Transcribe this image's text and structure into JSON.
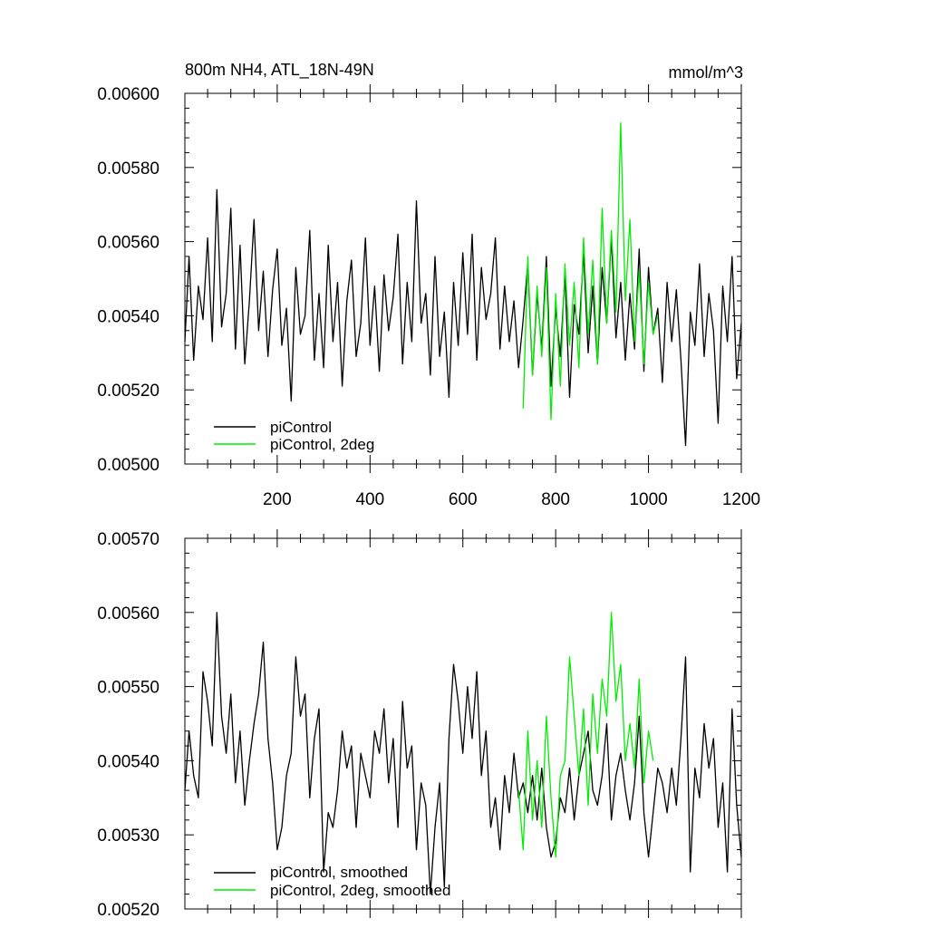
{
  "chart_data": [
    {
      "type": "line",
      "title": "800m NH4, ATL_18N-49N",
      "units": "mmol/m^3",
      "xlim": [
        1,
        1200
      ],
      "ylim": [
        0.005,
        0.006
      ],
      "x_ticks": [
        200,
        400,
        600,
        800,
        1000,
        1200
      ],
      "x_tick_labels": [
        "200",
        "400",
        "600",
        "800",
        "1000",
        "1200"
      ],
      "y_ticks": [
        0.005,
        0.0052,
        0.0054,
        0.0056,
        0.0058,
        0.006
      ],
      "y_tick_labels": [
        "0.00500",
        "0.00520",
        "0.00540",
        "0.00560",
        "0.00580",
        "0.00600"
      ],
      "legend_position": "bottom-left",
      "series": [
        {
          "name": "piControl",
          "color": "#000000",
          "x": [
            1,
            10,
            20,
            30,
            40,
            50,
            60,
            70,
            80,
            90,
            100,
            110,
            120,
            130,
            140,
            150,
            160,
            170,
            180,
            190,
            200,
            210,
            220,
            230,
            240,
            250,
            260,
            270,
            280,
            290,
            300,
            310,
            320,
            330,
            340,
            350,
            360,
            370,
            380,
            390,
            400,
            410,
            420,
            430,
            440,
            450,
            460,
            470,
            480,
            490,
            500,
            510,
            520,
            530,
            540,
            550,
            560,
            570,
            580,
            590,
            600,
            610,
            620,
            630,
            640,
            650,
            660,
            670,
            680,
            690,
            700,
            710,
            720,
            730,
            740,
            750,
            760,
            770,
            780,
            790,
            800,
            810,
            820,
            830,
            840,
            850,
            860,
            870,
            880,
            890,
            900,
            910,
            920,
            930,
            940,
            950,
            960,
            970,
            980,
            990,
            1000,
            1010,
            1020,
            1030,
            1040,
            1050,
            1060,
            1070,
            1080,
            1090,
            1100,
            1110,
            1120,
            1130,
            1140,
            1150,
            1160,
            1170,
            1180,
            1190,
            1200
          ],
          "y": [
            0.00533,
            0.00556,
            0.00528,
            0.00548,
            0.00539,
            0.00561,
            0.00533,
            0.00574,
            0.00537,
            0.00546,
            0.00569,
            0.00531,
            0.00559,
            0.00527,
            0.00544,
            0.00566,
            0.00536,
            0.00552,
            0.00529,
            0.00547,
            0.00558,
            0.00532,
            0.00542,
            0.00517,
            0.00553,
            0.00535,
            0.0054,
            0.00563,
            0.00528,
            0.00546,
            0.00526,
            0.00559,
            0.00533,
            0.00549,
            0.00521,
            0.00544,
            0.00555,
            0.00529,
            0.00538,
            0.00561,
            0.00532,
            0.00548,
            0.00525,
            0.00551,
            0.00536,
            0.00545,
            0.00562,
            0.00527,
            0.00549,
            0.00533,
            0.00571,
            0.00538,
            0.00546,
            0.00524,
            0.00556,
            0.00529,
            0.00541,
            0.00518,
            0.00549,
            0.00532,
            0.00557,
            0.00535,
            0.00562,
            0.00528,
            0.00553,
            0.00539,
            0.00546,
            0.00561,
            0.00531,
            0.00548,
            0.00533,
            0.00544,
            0.00526,
            0.00539,
            0.00554,
            0.00524,
            0.00546,
            0.00531,
            0.00556,
            0.00521,
            0.00542,
            0.00529,
            0.00551,
            0.00518,
            0.00543,
            0.00535,
            0.00557,
            0.0053,
            0.00548,
            0.00527,
            0.00553,
            0.00538,
            0.00561,
            0.00534,
            0.00549,
            0.00528,
            0.00546,
            0.00531,
            0.00558,
            0.00525,
            0.00553,
            0.00535,
            0.00542,
            0.00522,
            0.00549,
            0.00533,
            0.00547,
            0.00528,
            0.00505,
            0.00541,
            0.00532,
            0.00554,
            0.00529,
            0.00546,
            0.00536,
            0.00511,
            0.00548,
            0.00533,
            0.00556,
            0.00523,
            0.00538
          ]
        },
        {
          "name": "piControl, 2deg",
          "color": "#00ee00",
          "x": [
            730,
            740,
            750,
            760,
            770,
            780,
            790,
            800,
            810,
            820,
            830,
            840,
            850,
            860,
            870,
            880,
            890,
            900,
            910,
            920,
            930,
            940,
            950,
            960,
            970,
            980,
            990,
            1000,
            1010,
            1020
          ],
          "y": [
            0.00515,
            0.00556,
            0.00524,
            0.00548,
            0.00529,
            0.00553,
            0.00512,
            0.00546,
            0.00521,
            0.00554,
            0.00532,
            0.00549,
            0.00526,
            0.00561,
            0.00535,
            0.00555,
            0.00527,
            0.00569,
            0.00538,
            0.00563,
            0.00541,
            0.00592,
            0.00544,
            0.00566,
            0.00533,
            0.00552,
            0.00527,
            0.00549,
            0.00535,
            0.0054
          ]
        }
      ]
    },
    {
      "type": "line",
      "xlim": [
        1,
        1200
      ],
      "ylim": [
        0.0052,
        0.0057
      ],
      "y_ticks": [
        0.0052,
        0.0053,
        0.0054,
        0.0055,
        0.0056,
        0.0057
      ],
      "y_tick_labels": [
        "0.00520",
        "0.00530",
        "0.00540",
        "0.00550",
        "0.00560",
        "0.00570"
      ],
      "legend_position": "bottom-left",
      "series": [
        {
          "name": "piControl, smoothed",
          "color": "#000000",
          "x": [
            1,
            10,
            20,
            30,
            40,
            50,
            60,
            70,
            80,
            90,
            100,
            110,
            120,
            130,
            140,
            150,
            160,
            170,
            180,
            190,
            200,
            210,
            220,
            230,
            240,
            250,
            260,
            270,
            280,
            290,
            300,
            310,
            320,
            330,
            340,
            350,
            360,
            370,
            380,
            390,
            400,
            410,
            420,
            430,
            440,
            450,
            460,
            470,
            480,
            490,
            500,
            510,
            520,
            530,
            540,
            550,
            560,
            570,
            580,
            590,
            600,
            610,
            620,
            630,
            640,
            650,
            660,
            670,
            680,
            690,
            700,
            710,
            720,
            730,
            740,
            750,
            760,
            770,
            780,
            790,
            800,
            810,
            820,
            830,
            840,
            850,
            860,
            870,
            880,
            890,
            900,
            910,
            920,
            930,
            940,
            950,
            960,
            970,
            980,
            990,
            1000,
            1010,
            1020,
            1030,
            1040,
            1050,
            1060,
            1070,
            1080,
            1090,
            1100,
            1110,
            1120,
            1130,
            1140,
            1150,
            1160,
            1170,
            1180,
            1190,
            1200
          ],
          "y": [
            0.00536,
            0.00544,
            0.00538,
            0.00535,
            0.00552,
            0.00548,
            0.00542,
            0.0056,
            0.00546,
            0.00541,
            0.00549,
            0.00537,
            0.00544,
            0.00534,
            0.0054,
            0.00545,
            0.00549,
            0.00556,
            0.00543,
            0.00537,
            0.00528,
            0.00531,
            0.00538,
            0.00541,
            0.00554,
            0.00546,
            0.00549,
            0.00535,
            0.00543,
            0.00547,
            0.00525,
            0.00533,
            0.00531,
            0.00536,
            0.00544,
            0.00539,
            0.00542,
            0.00531,
            0.00541,
            0.00538,
            0.00535,
            0.00544,
            0.00541,
            0.00547,
            0.00537,
            0.00543,
            0.00531,
            0.00548,
            0.00539,
            0.00542,
            0.00528,
            0.00537,
            0.00534,
            0.00522,
            0.00531,
            0.00537,
            0.00523,
            0.00543,
            0.00553,
            0.00548,
            0.00541,
            0.0055,
            0.00543,
            0.00552,
            0.00538,
            0.00544,
            0.00531,
            0.00535,
            0.00528,
            0.00538,
            0.00533,
            0.00541,
            0.00535,
            0.00537,
            0.00533,
            0.00538,
            0.00532,
            0.00539,
            0.00531,
            0.00527,
            0.00529,
            0.00535,
            0.00533,
            0.00539,
            0.00532,
            0.00538,
            0.00541,
            0.00544,
            0.00536,
            0.00534,
            0.00538,
            0.00545,
            0.00532,
            0.00538,
            0.00541,
            0.00536,
            0.00532,
            0.00537,
            0.00546,
            0.00533,
            0.00527,
            0.00533,
            0.00539,
            0.00537,
            0.00533,
            0.00539,
            0.00534,
            0.00543,
            0.00554,
            0.00525,
            0.00539,
            0.00535,
            0.00545,
            0.00539,
            0.00543,
            0.00531,
            0.00537,
            0.00525,
            0.00547,
            0.00534,
            0.00527
          ]
        },
        {
          "name": "piControl, 2deg, smoothed",
          "color": "#00ee00",
          "x": [
            720,
            730,
            740,
            750,
            760,
            770,
            780,
            790,
            800,
            810,
            820,
            830,
            840,
            850,
            860,
            870,
            880,
            890,
            900,
            910,
            920,
            930,
            940,
            950,
            960,
            970,
            980,
            990,
            1000,
            1010
          ],
          "y": [
            0.00536,
            0.00528,
            0.00544,
            0.00532,
            0.0054,
            0.00531,
            0.00546,
            0.00535,
            0.00527,
            0.00538,
            0.0054,
            0.00554,
            0.00546,
            0.00538,
            0.00547,
            0.00534,
            0.00549,
            0.00541,
            0.00551,
            0.00546,
            0.0056,
            0.00548,
            0.00553,
            0.0054,
            0.00545,
            0.00539,
            0.00551,
            0.00537,
            0.00544,
            0.0054
          ]
        }
      ]
    }
  ]
}
